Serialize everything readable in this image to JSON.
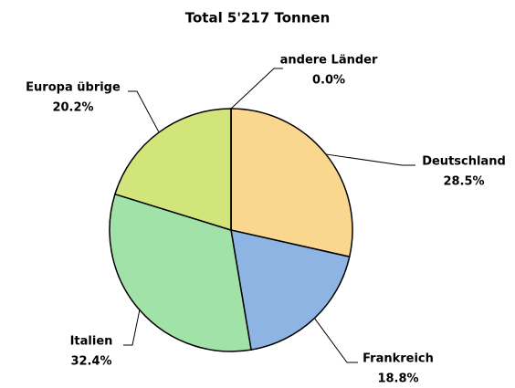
{
  "chart_data": {
    "type": "pie",
    "title": "Total 5'217 Tonnen",
    "categories": [
      "Deutschland",
      "Frankreich",
      "Italien",
      "Europa übrige",
      "andere Länder"
    ],
    "values": [
      28.5,
      18.8,
      32.4,
      20.2,
      0.0
    ],
    "value_labels": [
      "28.5%",
      "18.8%",
      "32.4%",
      "20.2%",
      "0.0%"
    ],
    "colors": [
      "#fad78e",
      "#8db4e2",
      "#a0e2a8",
      "#d2e57a",
      "#c8c8c8"
    ]
  }
}
